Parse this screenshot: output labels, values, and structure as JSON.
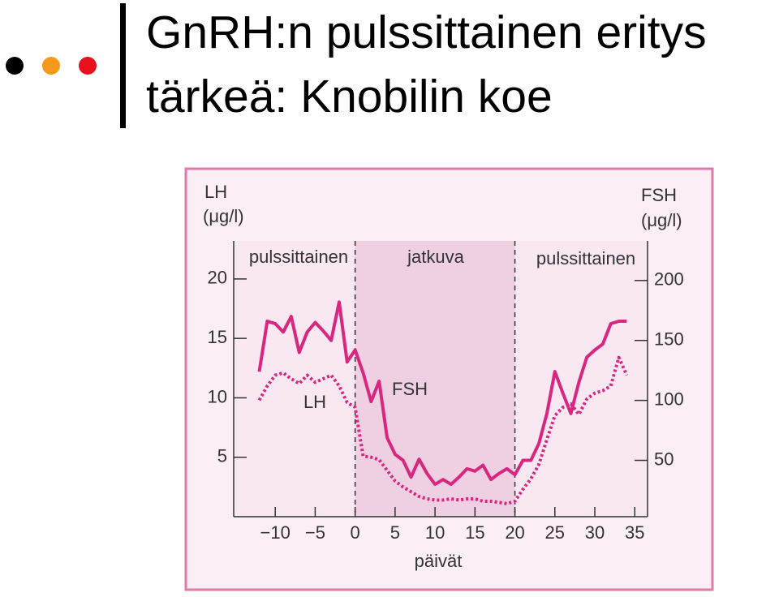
{
  "slide": {
    "title_lines": [
      "GnRH:n pulssittainen eritys",
      "tärkeä: Knobilin koe"
    ]
  },
  "chart_data": {
    "type": "line",
    "y_label_lines": [
      "LH",
      "(μg/l)"
    ],
    "y2_label_lines": [
      "FSH",
      "(μg/l)"
    ],
    "x_label": "päivät",
    "annotations": [
      "pulssittainen",
      "jatkuva",
      "pulssittainen",
      "FSH",
      "LH"
    ],
    "shaded_span": [
      0,
      20
    ],
    "x": [
      -12,
      -11,
      -10,
      -9,
      -8,
      -7,
      -6,
      -5,
      -4,
      -3,
      -2,
      -1,
      0,
      1,
      2,
      3,
      4,
      5,
      6,
      7,
      8,
      9,
      10,
      11,
      12,
      13,
      14,
      15,
      16,
      17,
      18,
      19,
      20,
      21,
      22,
      23,
      24,
      25,
      26,
      27,
      28,
      29,
      30,
      31,
      32,
      33,
      34
    ],
    "xlim": [
      -15.2,
      36.6
    ],
    "xticks": [
      {
        "value": -10,
        "label": "−10"
      },
      {
        "value": -5,
        "label": "−5"
      },
      0,
      5,
      10,
      15,
      20,
      25,
      30,
      35
    ],
    "ylim": [
      0,
      23.2
    ],
    "yticks": [
      5,
      10,
      15,
      20
    ],
    "y2lim": [
      3,
      233
    ],
    "y2ticks": [
      50,
      100,
      150,
      200
    ],
    "series": [
      {
        "name": "FSH",
        "color": "#d9277f",
        "axis": "y2",
        "dash": false,
        "values": [
          124,
          166,
          164,
          157,
          170,
          140,
          157,
          165,
          158,
          150,
          182,
          132,
          142,
          123,
          99,
          116,
          69,
          55,
          50,
          36,
          51,
          39,
          30,
          34,
          30,
          36,
          43,
          41,
          46,
          34,
          39,
          43,
          38,
          50,
          50,
          64,
          89,
          124,
          106,
          89,
          115,
          136,
          142,
          147,
          164,
          166,
          166
        ]
      },
      {
        "name": "LH",
        "color": "#d9277f",
        "axis": "y",
        "dash": true,
        "values": [
          9.8,
          11.0,
          11.9,
          12.1,
          11.6,
          11.2,
          11.9,
          11.3,
          11.6,
          11.9,
          11.0,
          9.6,
          9.2,
          5.1,
          5.0,
          4.8,
          3.9,
          3.0,
          2.5,
          2.1,
          1.7,
          1.5,
          1.4,
          1.4,
          1.5,
          1.4,
          1.5,
          1.5,
          1.3,
          1.3,
          1.2,
          1.1,
          1.3,
          2.3,
          3.2,
          4.4,
          6.5,
          8.5,
          9.2,
          9.5,
          8.6,
          9.9,
          10.4,
          10.6,
          11.0,
          13.4,
          11.9
        ]
      }
    ]
  }
}
